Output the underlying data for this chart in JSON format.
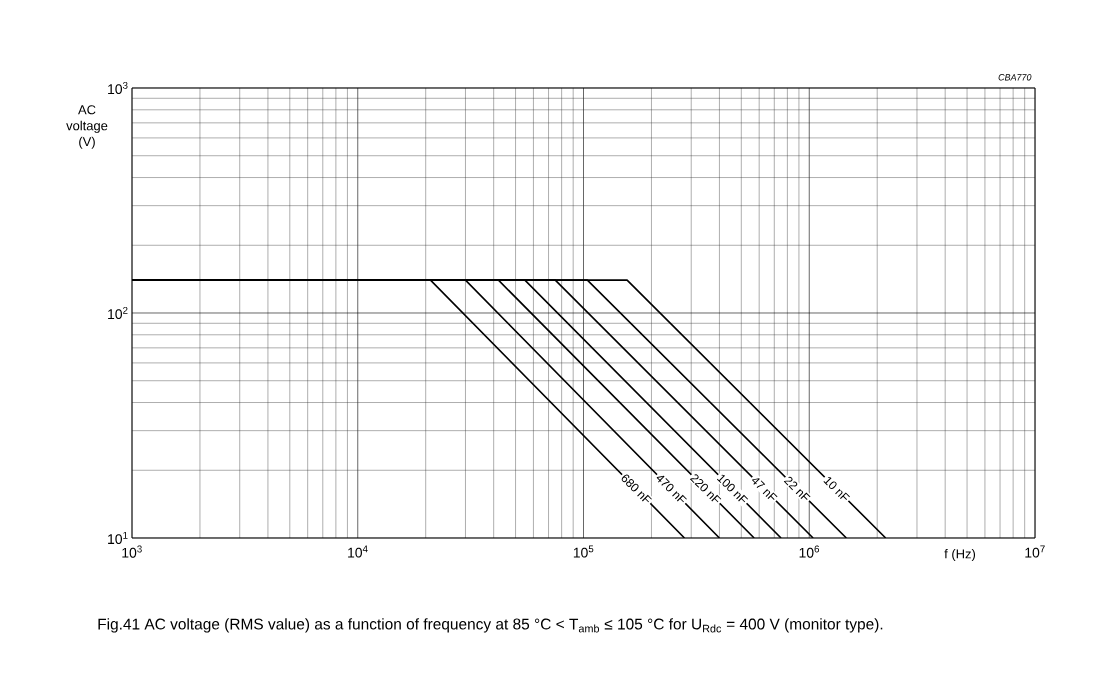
{
  "chart_data": {
    "type": "line",
    "xlabel": "f (Hz)",
    "ylabel": "AC voltage (V)",
    "log": "xy",
    "grid": true,
    "marker": "none",
    "line_style": "solid",
    "xlim": [
      1000,
      10000000
    ],
    "ylim": [
      10,
      1000
    ],
    "xticks": [
      {
        "value": 1000,
        "label": "10$^{3}$"
      },
      {
        "value": 10000,
        "label": "10$^{4}$"
      },
      {
        "value": 100000,
        "label": "10$^{5}$"
      },
      {
        "value": 1000000,
        "label": "10$^{6}$"
      },
      {
        "value": 10000000,
        "label": "10$^{7}$"
      }
    ],
    "yticks": [
      {
        "value": 10,
        "label": "10$^{1}$"
      },
      {
        "value": 100,
        "label": "10$^{2}$"
      },
      {
        "value": 1000,
        "label": "10$^{3}$"
      }
    ],
    "series": [
      {
        "name": "680 nF",
        "color": "#000000",
        "x": [
          1000,
          21000,
          280000
        ],
        "values": [
          140,
          140,
          10
        ]
      },
      {
        "name": "470 nF",
        "color": "#000000",
        "x": [
          1000,
          30000,
          400000
        ],
        "values": [
          140,
          140,
          10
        ]
      },
      {
        "name": "220 nF",
        "color": "#000000",
        "x": [
          1000,
          42000,
          570000
        ],
        "values": [
          140,
          140,
          10
        ]
      },
      {
        "name": "100 nF",
        "color": "#000000",
        "x": [
          1000,
          55000,
          750000
        ],
        "values": [
          140,
          140,
          10
        ]
      },
      {
        "name": "47 nF",
        "color": "#000000",
        "x": [
          1000,
          75000,
          1040000
        ],
        "values": [
          140,
          140,
          10
        ]
      },
      {
        "name": "22 nF",
        "color": "#000000",
        "x": [
          1000,
          104000,
          1460000
        ],
        "values": [
          140,
          140,
          10
        ]
      },
      {
        "name": "10 nF",
        "color": "#000000",
        "x": [
          1000,
          156000,
          2180000
        ],
        "values": [
          140,
          140,
          10
        ]
      }
    ],
    "annotations": [
      "CBA770",
      "Fig.41  AC voltage (RMS value) as a function of frequency at 85 °C < T$_{amb}$ ≤ 105 °C for U$_{Rdc}$ = 400 V (monitor type)."
    ]
  }
}
